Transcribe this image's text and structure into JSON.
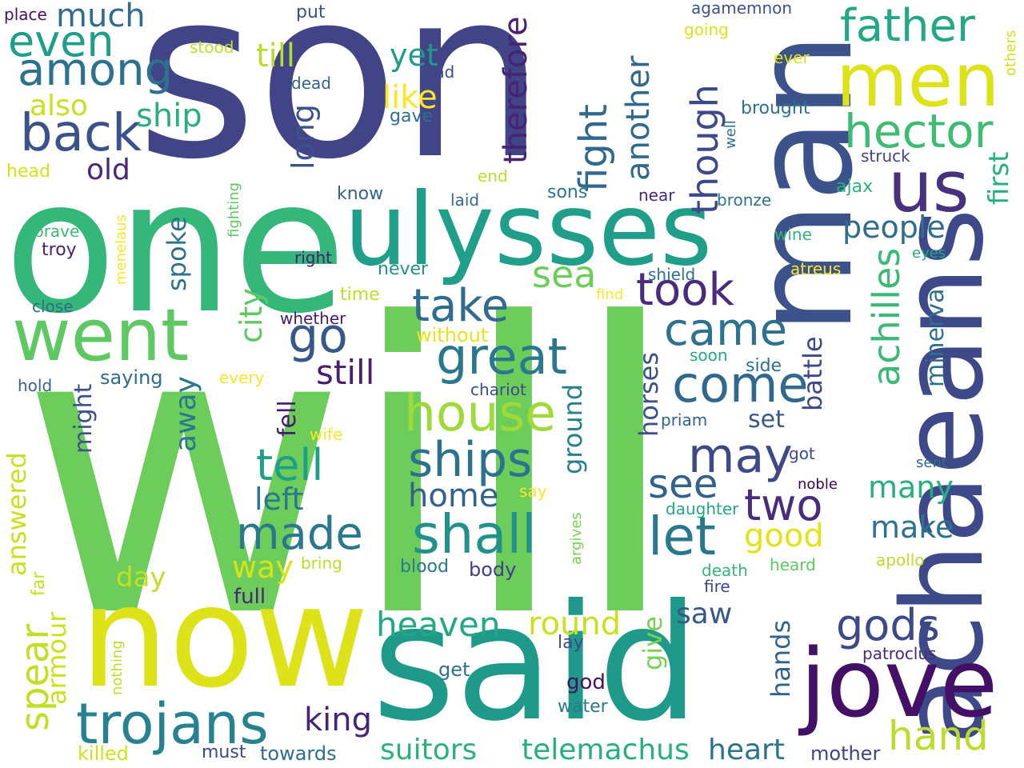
{
  "words": [
    {
      "text": "son",
      "color": "#414487",
      "vertical": false
    },
    {
      "text": "will",
      "color": "#6ccd5a",
      "vertical": false
    },
    {
      "text": "one",
      "color": "#35b779",
      "vertical": false
    },
    {
      "text": "now",
      "color": "#dde318",
      "vertical": false
    },
    {
      "text": "said",
      "color": "#1f9a8a",
      "vertical": false
    },
    {
      "text": "man",
      "color": "#3b528b",
      "vertical": true
    },
    {
      "text": "ulysses",
      "color": "#1f9e89",
      "vertical": false
    },
    {
      "text": "achaeans",
      "color": "#3e4989",
      "vertical": true
    },
    {
      "text": "jove",
      "color": "#440f66",
      "vertical": false
    },
    {
      "text": "men",
      "color": "#dde318",
      "vertical": false
    },
    {
      "text": "went",
      "color": "#5ec962",
      "vertical": false
    },
    {
      "text": "us",
      "color": "#46327e",
      "vertical": false
    },
    {
      "text": "hector",
      "color": "#3fbc73",
      "vertical": false
    },
    {
      "text": "father",
      "color": "#22a884",
      "vertical": false
    },
    {
      "text": "trojans",
      "color": "#26828e",
      "vertical": false
    },
    {
      "text": "house",
      "color": "#a0da39",
      "vertical": false
    },
    {
      "text": "shall",
      "color": "#21918c",
      "vertical": false
    },
    {
      "text": "ships",
      "color": "#2c728e",
      "vertical": false
    },
    {
      "text": "great",
      "color": "#2a788e",
      "vertical": false
    },
    {
      "text": "come",
      "color": "#31688e",
      "vertical": false
    },
    {
      "text": "back",
      "color": "#3b528b",
      "vertical": false
    },
    {
      "text": "among",
      "color": "#2c728e",
      "vertical": false
    },
    {
      "text": "even",
      "color": "#1f9e89",
      "vertical": false
    },
    {
      "text": "gods",
      "color": "#3e4989",
      "vertical": false
    },
    {
      "text": "took",
      "color": "#472d7b",
      "vertical": false
    },
    {
      "text": "take",
      "color": "#2f6c8e",
      "vertical": false
    },
    {
      "text": "made",
      "color": "#2a788e",
      "vertical": false
    },
    {
      "text": "came",
      "color": "#2c728e",
      "vertical": false
    },
    {
      "text": "may",
      "color": "#3e4989",
      "vertical": false
    },
    {
      "text": "let",
      "color": "#2a788e",
      "vertical": false
    },
    {
      "text": "go",
      "color": "#38588c",
      "vertical": false
    },
    {
      "text": "tell",
      "color": "#1f9e89",
      "vertical": false
    },
    {
      "text": "two",
      "color": "#472d7b",
      "vertical": false
    },
    {
      "text": "see",
      "color": "#33638d",
      "vertical": false
    },
    {
      "text": "hand",
      "color": "#b8de29",
      "vertical": false
    },
    {
      "text": "spear",
      "color": "#c2df23",
      "vertical": true
    },
    {
      "text": "achilles",
      "color": "#3aba76",
      "vertical": true
    },
    {
      "text": "heaven",
      "color": "#22a884",
      "vertical": false
    },
    {
      "text": "still",
      "color": "#481f70",
      "vertical": false
    },
    {
      "text": "fight",
      "color": "#31688e",
      "vertical": true
    },
    {
      "text": "though",
      "color": "#3e4989",
      "vertical": true
    },
    {
      "text": "another",
      "color": "#31688e",
      "vertical": true
    },
    {
      "text": "therefore",
      "color": "#482374",
      "vertical": true
    },
    {
      "text": "sea",
      "color": "#6ccd5a",
      "vertical": false
    },
    {
      "text": "good",
      "color": "#e3e418",
      "vertical": false
    },
    {
      "text": "round",
      "color": "#cae11f",
      "vertical": false
    },
    {
      "text": "king",
      "color": "#482475",
      "vertical": false
    },
    {
      "text": "home",
      "color": "#33638d",
      "vertical": false
    },
    {
      "text": "left",
      "color": "#2a788e",
      "vertical": false
    },
    {
      "text": "make",
      "color": "#2c728e",
      "vertical": false
    },
    {
      "text": "many",
      "color": "#29af7f",
      "vertical": false
    },
    {
      "text": "people",
      "color": "#2f6c8e",
      "vertical": false
    },
    {
      "text": "heart",
      "color": "#2c728e",
      "vertical": false
    },
    {
      "text": "suitors",
      "color": "#2db27d",
      "vertical": false
    },
    {
      "text": "telemachus",
      "color": "#29af7f",
      "vertical": false
    },
    {
      "text": "way",
      "color": "#d8e219",
      "vertical": false
    },
    {
      "text": "saw",
      "color": "#38588c",
      "vertical": false
    },
    {
      "text": "like",
      "color": "#fde725",
      "vertical": false
    },
    {
      "text": "yet",
      "color": "#1e9b8a",
      "vertical": false
    },
    {
      "text": "ship",
      "color": "#29af7f",
      "vertical": false
    },
    {
      "text": "till",
      "color": "#b5de2b",
      "vertical": false
    },
    {
      "text": "much",
      "color": "#2f6c8e",
      "vertical": false
    },
    {
      "text": "also",
      "color": "#c8e020",
      "vertical": false
    },
    {
      "text": "old",
      "color": "#482878",
      "vertical": false
    },
    {
      "text": "long",
      "color": "#3b528b",
      "vertical": true
    },
    {
      "text": "spoke",
      "color": "#2c728e",
      "vertical": true
    },
    {
      "text": "city",
      "color": "#5ec962",
      "vertical": true
    },
    {
      "text": "away",
      "color": "#2a788e",
      "vertical": true
    },
    {
      "text": "might",
      "color": "#3b528b",
      "vertical": true
    },
    {
      "text": "answered",
      "color": "#c8e020",
      "vertical": true
    },
    {
      "text": "armour",
      "color": "#cde11d",
      "vertical": true
    },
    {
      "text": "day",
      "color": "#c2df23",
      "vertical": false
    },
    {
      "text": "fell",
      "color": "#481a6c",
      "vertical": true
    },
    {
      "text": "ground",
      "color": "#277f8e",
      "vertical": true
    },
    {
      "text": "horses",
      "color": "#3b528b",
      "vertical": true
    },
    {
      "text": "hands",
      "color": "#33638d",
      "vertical": true
    },
    {
      "text": "give",
      "color": "#7ad151",
      "vertical": true
    },
    {
      "text": "battle",
      "color": "#3e4989",
      "vertical": true
    },
    {
      "text": "minerva",
      "color": "#2c728e",
      "vertical": true
    },
    {
      "text": "first",
      "color": "#29af7f",
      "vertical": true
    },
    {
      "text": "set",
      "color": "#38588c",
      "vertical": false
    },
    {
      "text": "full",
      "color": "#482575",
      "vertical": false
    },
    {
      "text": "towards",
      "color": "#2f6c8e",
      "vertical": false
    },
    {
      "text": "must",
      "color": "#3e4989",
      "vertical": false
    },
    {
      "text": "killed",
      "color": "#d0e11c",
      "vertical": false
    },
    {
      "text": "mother",
      "color": "#414487",
      "vertical": false
    },
    {
      "text": "god",
      "color": "#471063",
      "vertical": false
    },
    {
      "text": "get",
      "color": "#2c728e",
      "vertical": false
    },
    {
      "text": "water",
      "color": "#2a788e",
      "vertical": false
    },
    {
      "text": "lay",
      "color": "#3e4989",
      "vertical": false
    },
    {
      "text": "body",
      "color": "#433e85",
      "vertical": false
    },
    {
      "text": "blood",
      "color": "#2a788e",
      "vertical": false
    },
    {
      "text": "bring",
      "color": "#b8de29",
      "vertical": false
    },
    {
      "text": "far",
      "color": "#c8e020",
      "vertical": true
    },
    {
      "text": "nothing",
      "color": "#bddf26",
      "vertical": true
    },
    {
      "text": "saying",
      "color": "#2f6c8e",
      "vertical": false
    },
    {
      "text": "every",
      "color": "#fde725",
      "vertical": false
    },
    {
      "text": "hold",
      "color": "#33638d",
      "vertical": false
    },
    {
      "text": "close",
      "color": "#2f6c8e",
      "vertical": false
    },
    {
      "text": "whether",
      "color": "#481b6d",
      "vertical": false
    },
    {
      "text": "without",
      "color": "#e8e419",
      "vertical": false
    },
    {
      "text": "time",
      "color": "#bddf26",
      "vertical": false
    },
    {
      "text": "never",
      "color": "#21918c",
      "vertical": false
    },
    {
      "text": "find",
      "color": "#fde725",
      "vertical": false
    },
    {
      "text": "right",
      "color": "#481f70",
      "vertical": false
    },
    {
      "text": "troy",
      "color": "#482475",
      "vertical": false
    },
    {
      "text": "brave",
      "color": "#3aba76",
      "vertical": false
    },
    {
      "text": "head",
      "color": "#d8e219",
      "vertical": false
    },
    {
      "text": "stood",
      "color": "#bddf26",
      "vertical": false
    },
    {
      "text": "place",
      "color": "#471164",
      "vertical": false
    },
    {
      "text": "put",
      "color": "#3b528b",
      "vertical": false
    },
    {
      "text": "dead",
      "color": "#33638d",
      "vertical": false
    },
    {
      "text": "land",
      "color": "#3e4989",
      "vertical": false
    },
    {
      "text": "gave",
      "color": "#2d708e",
      "vertical": false
    },
    {
      "text": "know",
      "color": "#33638d",
      "vertical": false
    },
    {
      "text": "laid",
      "color": "#2f6c8e",
      "vertical": false
    },
    {
      "text": "end",
      "color": "#bddf26",
      "vertical": false
    },
    {
      "text": "sons",
      "color": "#2a788e",
      "vertical": false
    },
    {
      "text": "near",
      "color": "#482878",
      "vertical": false
    },
    {
      "text": "bronze",
      "color": "#2c728e",
      "vertical": false
    },
    {
      "text": "wine",
      "color": "#31b57b",
      "vertical": false
    },
    {
      "text": "shield",
      "color": "#2c728e",
      "vertical": false
    },
    {
      "text": "atreus",
      "color": "#fde725",
      "vertical": false
    },
    {
      "text": "soon",
      "color": "#22a884",
      "vertical": false
    },
    {
      "text": "side",
      "color": "#2c728e",
      "vertical": false
    },
    {
      "text": "chariot",
      "color": "#3e4989",
      "vertical": false
    },
    {
      "text": "priam",
      "color": "#33638d",
      "vertical": false
    },
    {
      "text": "wife",
      "color": "#fde725",
      "vertical": false
    },
    {
      "text": "got",
      "color": "#3e4989",
      "vertical": false
    },
    {
      "text": "sent",
      "color": "#2f6c8e",
      "vertical": false
    },
    {
      "text": "noble",
      "color": "#440154",
      "vertical": false
    },
    {
      "text": "daughter",
      "color": "#22a884",
      "vertical": false
    },
    {
      "text": "say",
      "color": "#fde725",
      "vertical": false
    },
    {
      "text": "death",
      "color": "#35b779",
      "vertical": false
    },
    {
      "text": "heard",
      "color": "#5ec962",
      "vertical": false
    },
    {
      "text": "apollo",
      "color": "#bddf26",
      "vertical": false
    },
    {
      "text": "fire",
      "color": "#3e4989",
      "vertical": false
    },
    {
      "text": "patroclus",
      "color": "#482878",
      "vertical": false
    },
    {
      "text": "brought",
      "color": "#2c728e",
      "vertical": false
    },
    {
      "text": "struck",
      "color": "#414487",
      "vertical": false
    },
    {
      "text": "ajax",
      "color": "#2db27d",
      "vertical": false
    },
    {
      "text": "eyes",
      "color": "#22a884",
      "vertical": false
    },
    {
      "text": "ever",
      "color": "#dde318",
      "vertical": false
    },
    {
      "text": "agamemnon",
      "color": "#3b528b",
      "vertical": false
    },
    {
      "text": "going",
      "color": "#dde318",
      "vertical": false
    },
    {
      "text": "others",
      "color": "#d0e11c",
      "vertical": true
    },
    {
      "text": "well",
      "color": "#2c728e",
      "vertical": true
    },
    {
      "text": "menelaus",
      "color": "#fde725",
      "vertical": true
    },
    {
      "text": "fighting",
      "color": "#5ec962",
      "vertical": true
    },
    {
      "text": "argives",
      "color": "#7ad151",
      "vertical": true
    }
  ]
}
